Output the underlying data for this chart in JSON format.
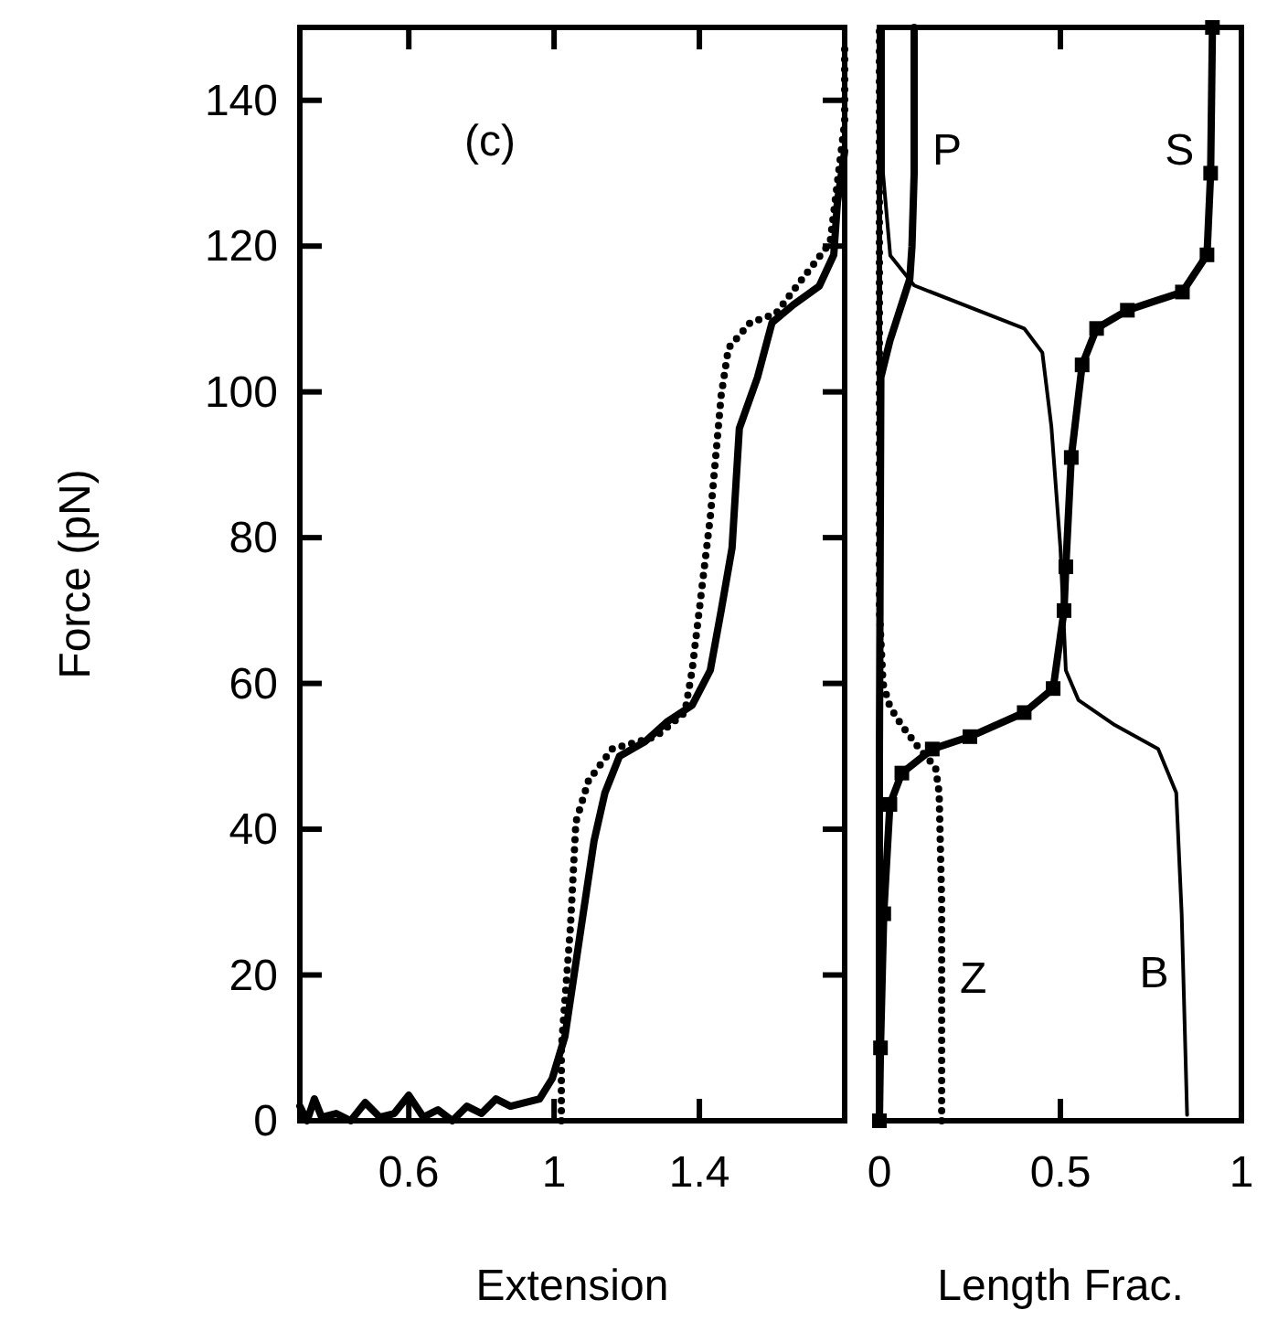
{
  "chart_data": [
    {
      "type": "line",
      "xlabel": "Extension",
      "ylabel": "Force (pN)",
      "annotations": [
        "(c)"
      ],
      "xlim": [
        0.3,
        1.8
      ],
      "xticks": [
        0.6,
        1,
        1.4
      ],
      "ylim": [
        0,
        150
      ],
      "yticks": [
        0,
        20,
        40,
        60,
        80,
        100,
        120,
        140
      ],
      "series": [
        {
          "color": "#000000",
          "line_style": "solid",
          "x": [
            0.3,
            0.32,
            0.34,
            0.36,
            0.4,
            0.44,
            0.48,
            0.52,
            0.56,
            0.6,
            0.64,
            0.68,
            0.72,
            0.76,
            0.8,
            0.84,
            0.88,
            0.92,
            0.96,
            0.995,
            1.03,
            1.08,
            1.11,
            1.14,
            1.18,
            1.25,
            1.31,
            1.38,
            1.43,
            1.46,
            1.49,
            1.51,
            1.56,
            1.6,
            1.66,
            1.73,
            1.77,
            1.78,
            1.8
          ],
          "values": [
            2,
            0,
            3,
            0.5,
            1,
            0,
            2.5,
            0.5,
            1,
            3.5,
            0.5,
            1.5,
            0,
            2,
            1,
            3,
            2,
            2.5,
            3,
            5.8,
            11.6,
            28.4,
            38.4,
            45,
            50,
            52,
            54.7,
            57,
            61.8,
            70,
            78.6,
            95,
            102,
            109.5,
            112,
            114.5,
            118.8,
            126,
            133
          ]
        },
        {
          "color": "#000000",
          "line_style": "dotted",
          "x": [
            1.02,
            1.02,
            1.045,
            1.06,
            1.095,
            1.16,
            1.28,
            1.36,
            1.38,
            1.41,
            1.43,
            1.46,
            1.48,
            1.54,
            1.61,
            1.76,
            1.8,
            1.8
          ],
          "values": [
            0,
            10,
            26.6,
            41,
            46.7,
            51,
            52.7,
            56,
            61.8,
            74.4,
            82.8,
            99.5,
            106,
            109.5,
            110.7,
            120.5,
            137,
            147
          ]
        }
      ]
    },
    {
      "type": "line",
      "xlabel": "Length Frac.",
      "xlim": [
        0,
        1
      ],
      "xticks": [
        0,
        0.5,
        1
      ],
      "ylim": [
        0,
        150
      ],
      "tick_labels": "x",
      "series": [
        {
          "name": "P",
          "color": "#000000",
          "line_style": "solid",
          "x": [
            0.096,
            0.096,
            0.09,
            0.084,
            0.029,
            0.004,
            0.0,
            0.0
          ],
          "values": [
            150,
            130,
            120,
            115.5,
            107,
            102,
            50,
            0
          ]
        },
        {
          "name": "S",
          "color": "#000000",
          "line_style": "solid",
          "marker": "square",
          "x": [
            0.92,
            0.915,
            0.905,
            0.837,
            0.685,
            0.6,
            0.56,
            0.53,
            0.515,
            0.51,
            0.48,
            0.4,
            0.25,
            0.146,
            0.062,
            0.029,
            0.012,
            0.003,
            0.0
          ],
          "values": [
            150,
            130,
            118.8,
            113.7,
            111.2,
            108.7,
            103.7,
            91,
            76,
            70,
            59.3,
            56,
            52.7,
            51,
            47.7,
            43.4,
            28.4,
            10,
            0
          ]
        },
        {
          "name": "Z",
          "color": "#000000",
          "line_style": "dotted",
          "x": [
            0.172,
            0.172,
            0.165,
            0.155,
            0.111,
            0.061,
            0.029,
            0.01,
            0.0,
            0.0
          ],
          "values": [
            0,
            30,
            45,
            48.5,
            51,
            54.3,
            56.8,
            60,
            70,
            150
          ]
        },
        {
          "name": "B",
          "color": "#000000",
          "line_style": "solid",
          "x": [
            0.85,
            0.835,
            0.82,
            0.77,
            0.65,
            0.55,
            0.515,
            0.5,
            0.475,
            0.45,
            0.4,
            0.096,
            0.03,
            0.01,
            0.01
          ],
          "values": [
            0.8,
            28.4,
            45,
            51,
            54.3,
            57.7,
            61.8,
            78.6,
            95.3,
            105.4,
            108.7,
            114.6,
            118.7,
            130,
            150
          ]
        }
      ]
    }
  ]
}
